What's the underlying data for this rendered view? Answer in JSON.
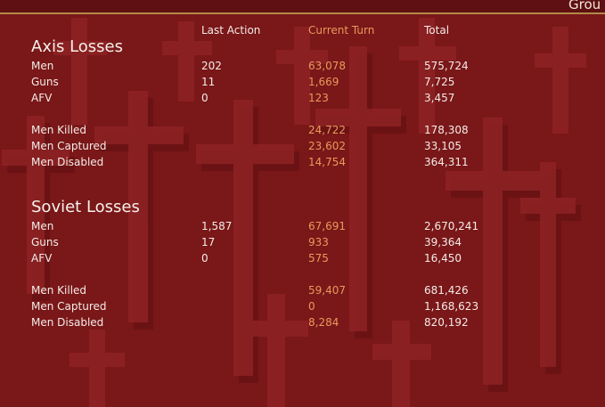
{
  "header": {
    "title": "Grou"
  },
  "columns": {
    "last_action": "Last Action",
    "current_turn": "Current Turn",
    "total": "Total"
  },
  "axis": {
    "title": "Axis Losses",
    "rows": [
      {
        "label": "Men",
        "last": "202",
        "current": "63,078",
        "total": "575,724"
      },
      {
        "label": "Guns",
        "last": "11",
        "current": "1,669",
        "total": "7,725"
      },
      {
        "label": "AFV",
        "last": "0",
        "current": "123",
        "total": "3,457"
      },
      {
        "label": "Men Killed",
        "last": "",
        "current": "24,722",
        "total": "178,308"
      },
      {
        "label": "Men Captured",
        "last": "",
        "current": "23,602",
        "total": "33,105"
      },
      {
        "label": "Men Disabled",
        "last": "",
        "current": "14,754",
        "total": "364,311"
      }
    ]
  },
  "soviet": {
    "title": "Soviet Losses",
    "rows": [
      {
        "label": "Men",
        "last": "1,587",
        "current": "67,691",
        "total": "2,670,241"
      },
      {
        "label": "Guns",
        "last": "17",
        "current": "933",
        "total": "39,364"
      },
      {
        "label": "AFV",
        "last": "0",
        "current": "575",
        "total": "16,450"
      },
      {
        "label": "Men Killed",
        "last": "",
        "current": "59,407",
        "total": "681,426"
      },
      {
        "label": "Men Captured",
        "last": "",
        "current": "0",
        "total": "1,168,623"
      },
      {
        "label": "Men Disabled",
        "last": "",
        "current": "8,284",
        "total": "820,192"
      }
    ]
  },
  "colors": {
    "background": "#7a1719",
    "cross": "#8e2224",
    "cross_shadow": "#5f0f11",
    "text": "#f2ece6",
    "accent": "#e89a5a"
  }
}
